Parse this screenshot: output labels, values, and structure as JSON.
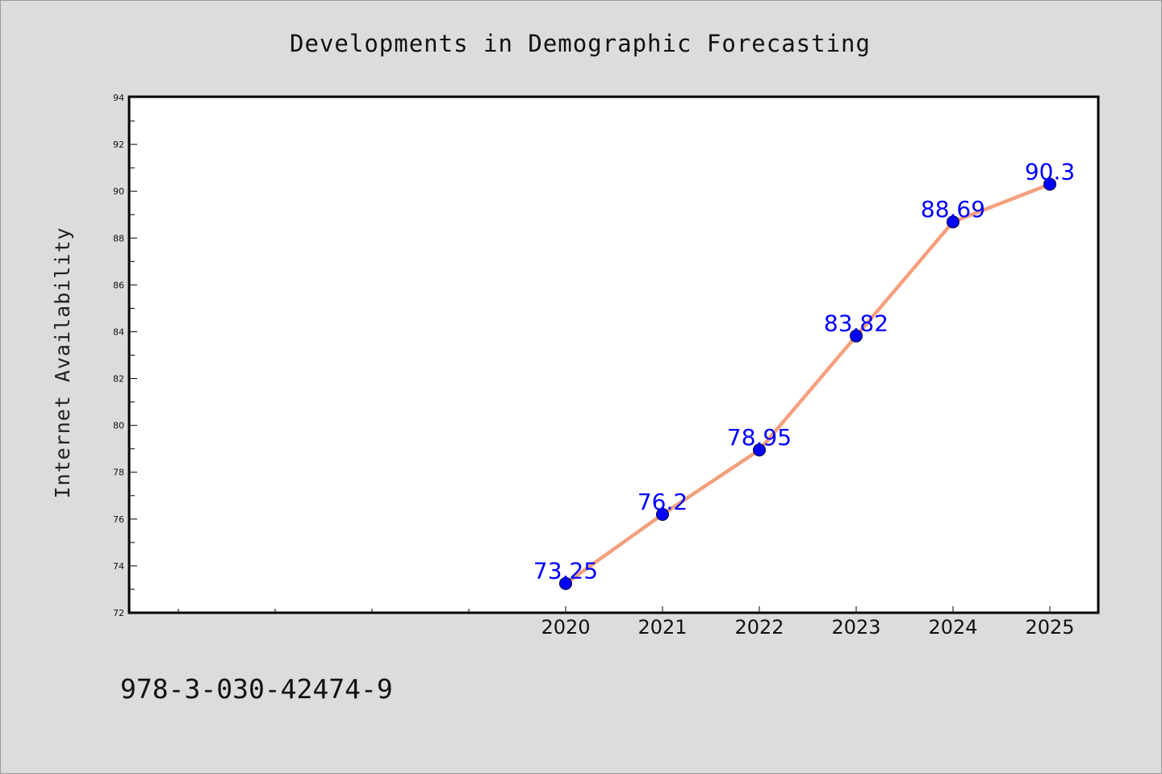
{
  "chart_data": {
    "type": "line",
    "title": "Developments in Demographic Forecasting",
    "xlabel": "",
    "ylabel": "Internet Availability",
    "categories": [
      "2020",
      "2021",
      "2022",
      "2023",
      "2024",
      "2025"
    ],
    "values": [
      73.25,
      76.2,
      78.95,
      83.82,
      88.69,
      90.3
    ],
    "data_labels": [
      "73.25",
      "76.2",
      "78.95",
      "83.82",
      "88.69",
      "90.3"
    ],
    "ylim": [
      72,
      94
    ],
    "yticks": [
      72,
      74,
      76,
      78,
      80,
      82,
      84,
      86,
      88,
      90,
      92,
      94
    ],
    "xlim": [
      2015.5,
      2025.5
    ],
    "grid": false,
    "line_color": "#f4a07e",
    "marker_color": "#0000ff"
  },
  "footer": {
    "isbn": "978-3-030-42474-9"
  }
}
